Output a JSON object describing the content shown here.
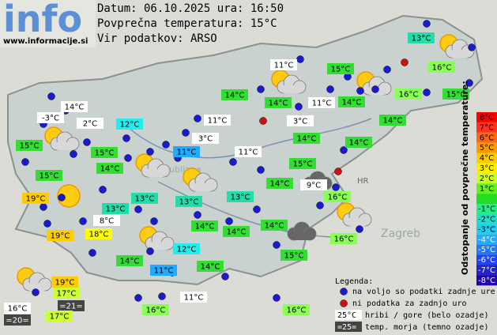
{
  "header": {
    "logo": "info",
    "url": "www.informacije.si",
    "lines": [
      "Datum: 06.10.2025 ura: 16:50",
      "Povprečna temperatura: 15°C",
      "Vir podatkov: ARSO"
    ]
  },
  "map_labels": [
    "Ljubljana",
    "HR",
    "Zagreb"
  ],
  "stations": [
    "13°C",
    "11°C",
    "15°C",
    "16°C",
    "14°C",
    "14°C",
    "11°C",
    "14°C",
    "16°C",
    "15°C",
    "14°C",
    "-3°C",
    "2°C",
    "12°C",
    "11°C",
    "3°C",
    "14°C",
    "15°C",
    "3°C",
    "14°C",
    "14°C",
    "15°C",
    "11°C",
    "11°C",
    "14°C",
    "15°C",
    "15°C",
    "14°C",
    "9°C",
    "16°C",
    "19°C",
    "13°C",
    "13°C",
    "13°C",
    "13°C",
    "8°C",
    "14°C",
    "14°C",
    "14°C",
    "19°C",
    "18°C",
    "12°C",
    "16°C",
    "15°C",
    "14°C",
    "11°C",
    "14°C",
    "19°C",
    "17°C",
    "=21=",
    "11°C",
    "16°C",
    "17°C",
    "=20=",
    "16°C",
    "16°C"
  ],
  "scale": {
    "title": "Odstopanje od povprečne temperature:",
    "labels": [
      "8°C",
      "7°C",
      "6°C",
      "5°C",
      "4°C",
      "3°C",
      "2°C",
      "1°C",
      "-1°C",
      "-2°C",
      "-3°C",
      "-4°C",
      "-5°C",
      "-6°C",
      "-7°C",
      "-8°C"
    ]
  },
  "legend": {
    "title": "Legenda:",
    "items": [
      "na voljo so podatki zadnje ure",
      "ni podatka za zadnjo uro"
    ],
    "mountain_sample": "25°C",
    "mountain_text": "hribi / gore (belo ozadje)",
    "sea_sample": "=25=",
    "sea_text": "temp. morja (temno ozadje)"
  }
}
